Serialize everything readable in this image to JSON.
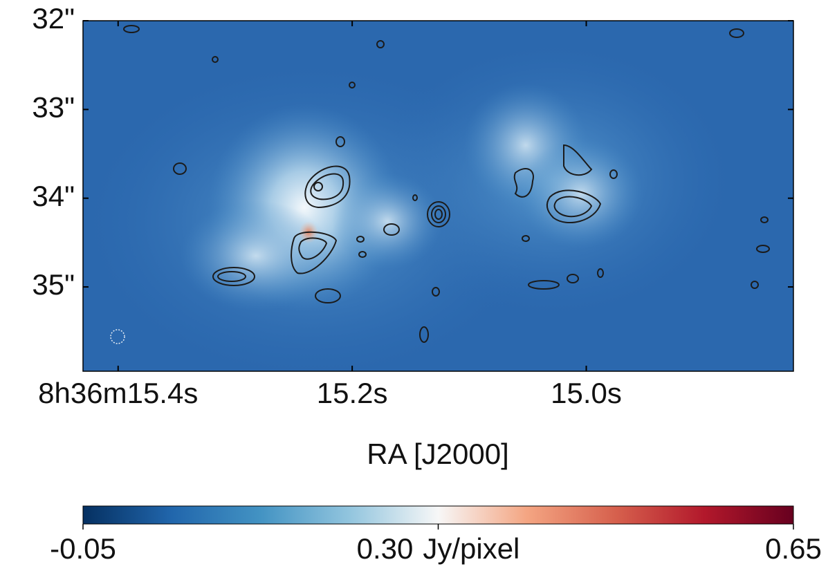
{
  "chart_data": {
    "type": "image",
    "xlabel": "RA [J2000]",
    "xlim": [
      15.43,
      14.823
    ],
    "xticks": [
      {
        "value": 15.4,
        "label": "8h36m15.4s"
      },
      {
        "value": 15.2,
        "label": "15.2s"
      },
      {
        "value": 15.0,
        "label": "15.0s"
      }
    ],
    "ylim": [
      35.95,
      32
    ],
    "yticks": [
      {
        "value": 32,
        "label": "32\""
      },
      {
        "value": 33,
        "label": "33\""
      },
      {
        "value": 34,
        "label": "34\""
      },
      {
        "value": 35,
        "label": "35\""
      }
    ],
    "colorbar": {
      "label": "Jy/pixel",
      "lim": [
        -0.05,
        0.65
      ],
      "ticks": [
        -0.05,
        {
          "value": 0.3,
          "label": "0.30"
        },
        0.65
      ],
      "colormap": [
        "#053061",
        "#2166ac",
        "#4393c3",
        "#92c5de",
        "#f7f7f7",
        "#f4a582",
        "#d6604d",
        "#b2182b",
        "#67001f"
      ]
    }
  }
}
